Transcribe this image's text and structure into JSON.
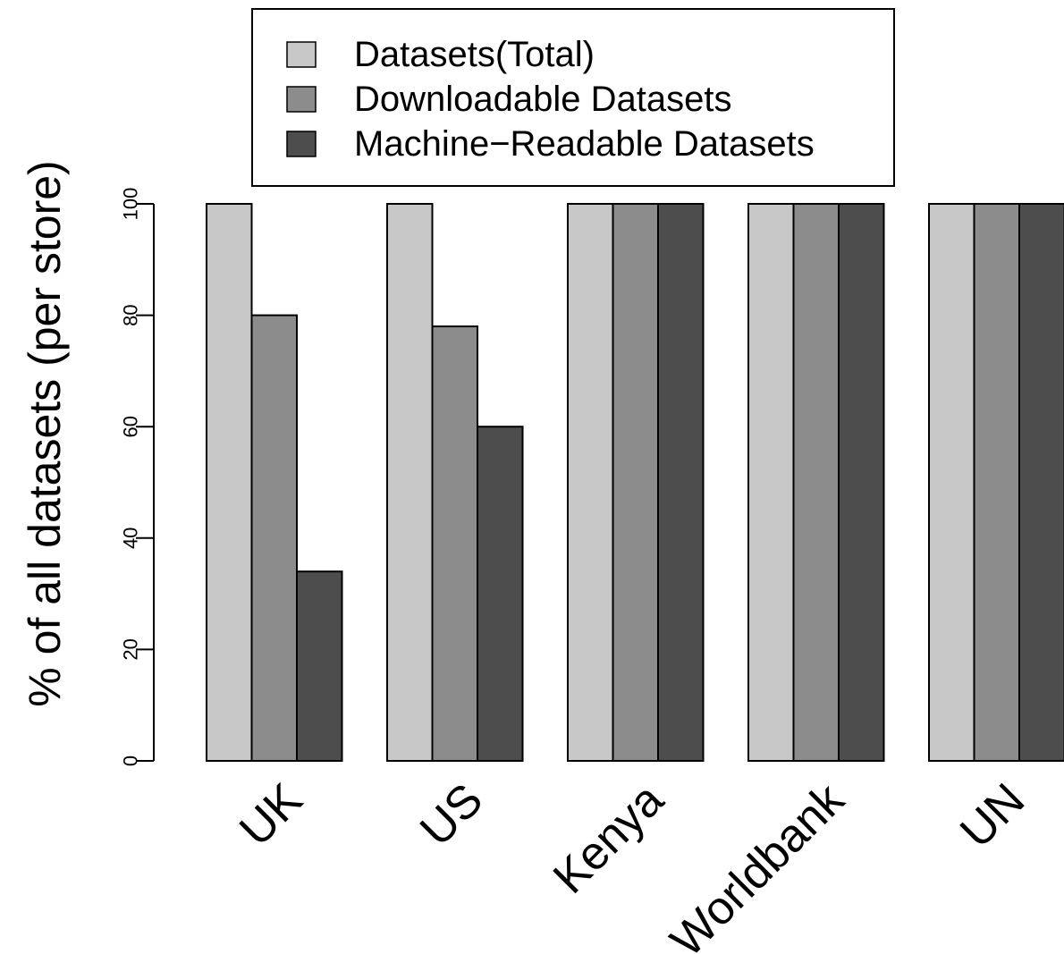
{
  "chart_data": {
    "type": "bar",
    "title": "",
    "xlabel": "",
    "ylabel": "% of all datasets (per store)",
    "ylim": [
      0,
      100
    ],
    "yticks": [
      0,
      20,
      40,
      60,
      80,
      100
    ],
    "categories": [
      "UK",
      "US",
      "Kenya",
      "Worldbank",
      "UN"
    ],
    "series": [
      {
        "name": "Datasets(Total)",
        "color": "#c8c8c8",
        "values": [
          100,
          100,
          100,
          100,
          100
        ]
      },
      {
        "name": "Downloadable Datasets",
        "color": "#8c8c8c",
        "values": [
          80,
          78,
          100,
          100,
          100
        ]
      },
      {
        "name": "Machine−Readable Datasets",
        "color": "#4d4d4d",
        "values": [
          34,
          60,
          100,
          100,
          100
        ]
      }
    ],
    "legend_position": "top-center",
    "grid": false
  }
}
